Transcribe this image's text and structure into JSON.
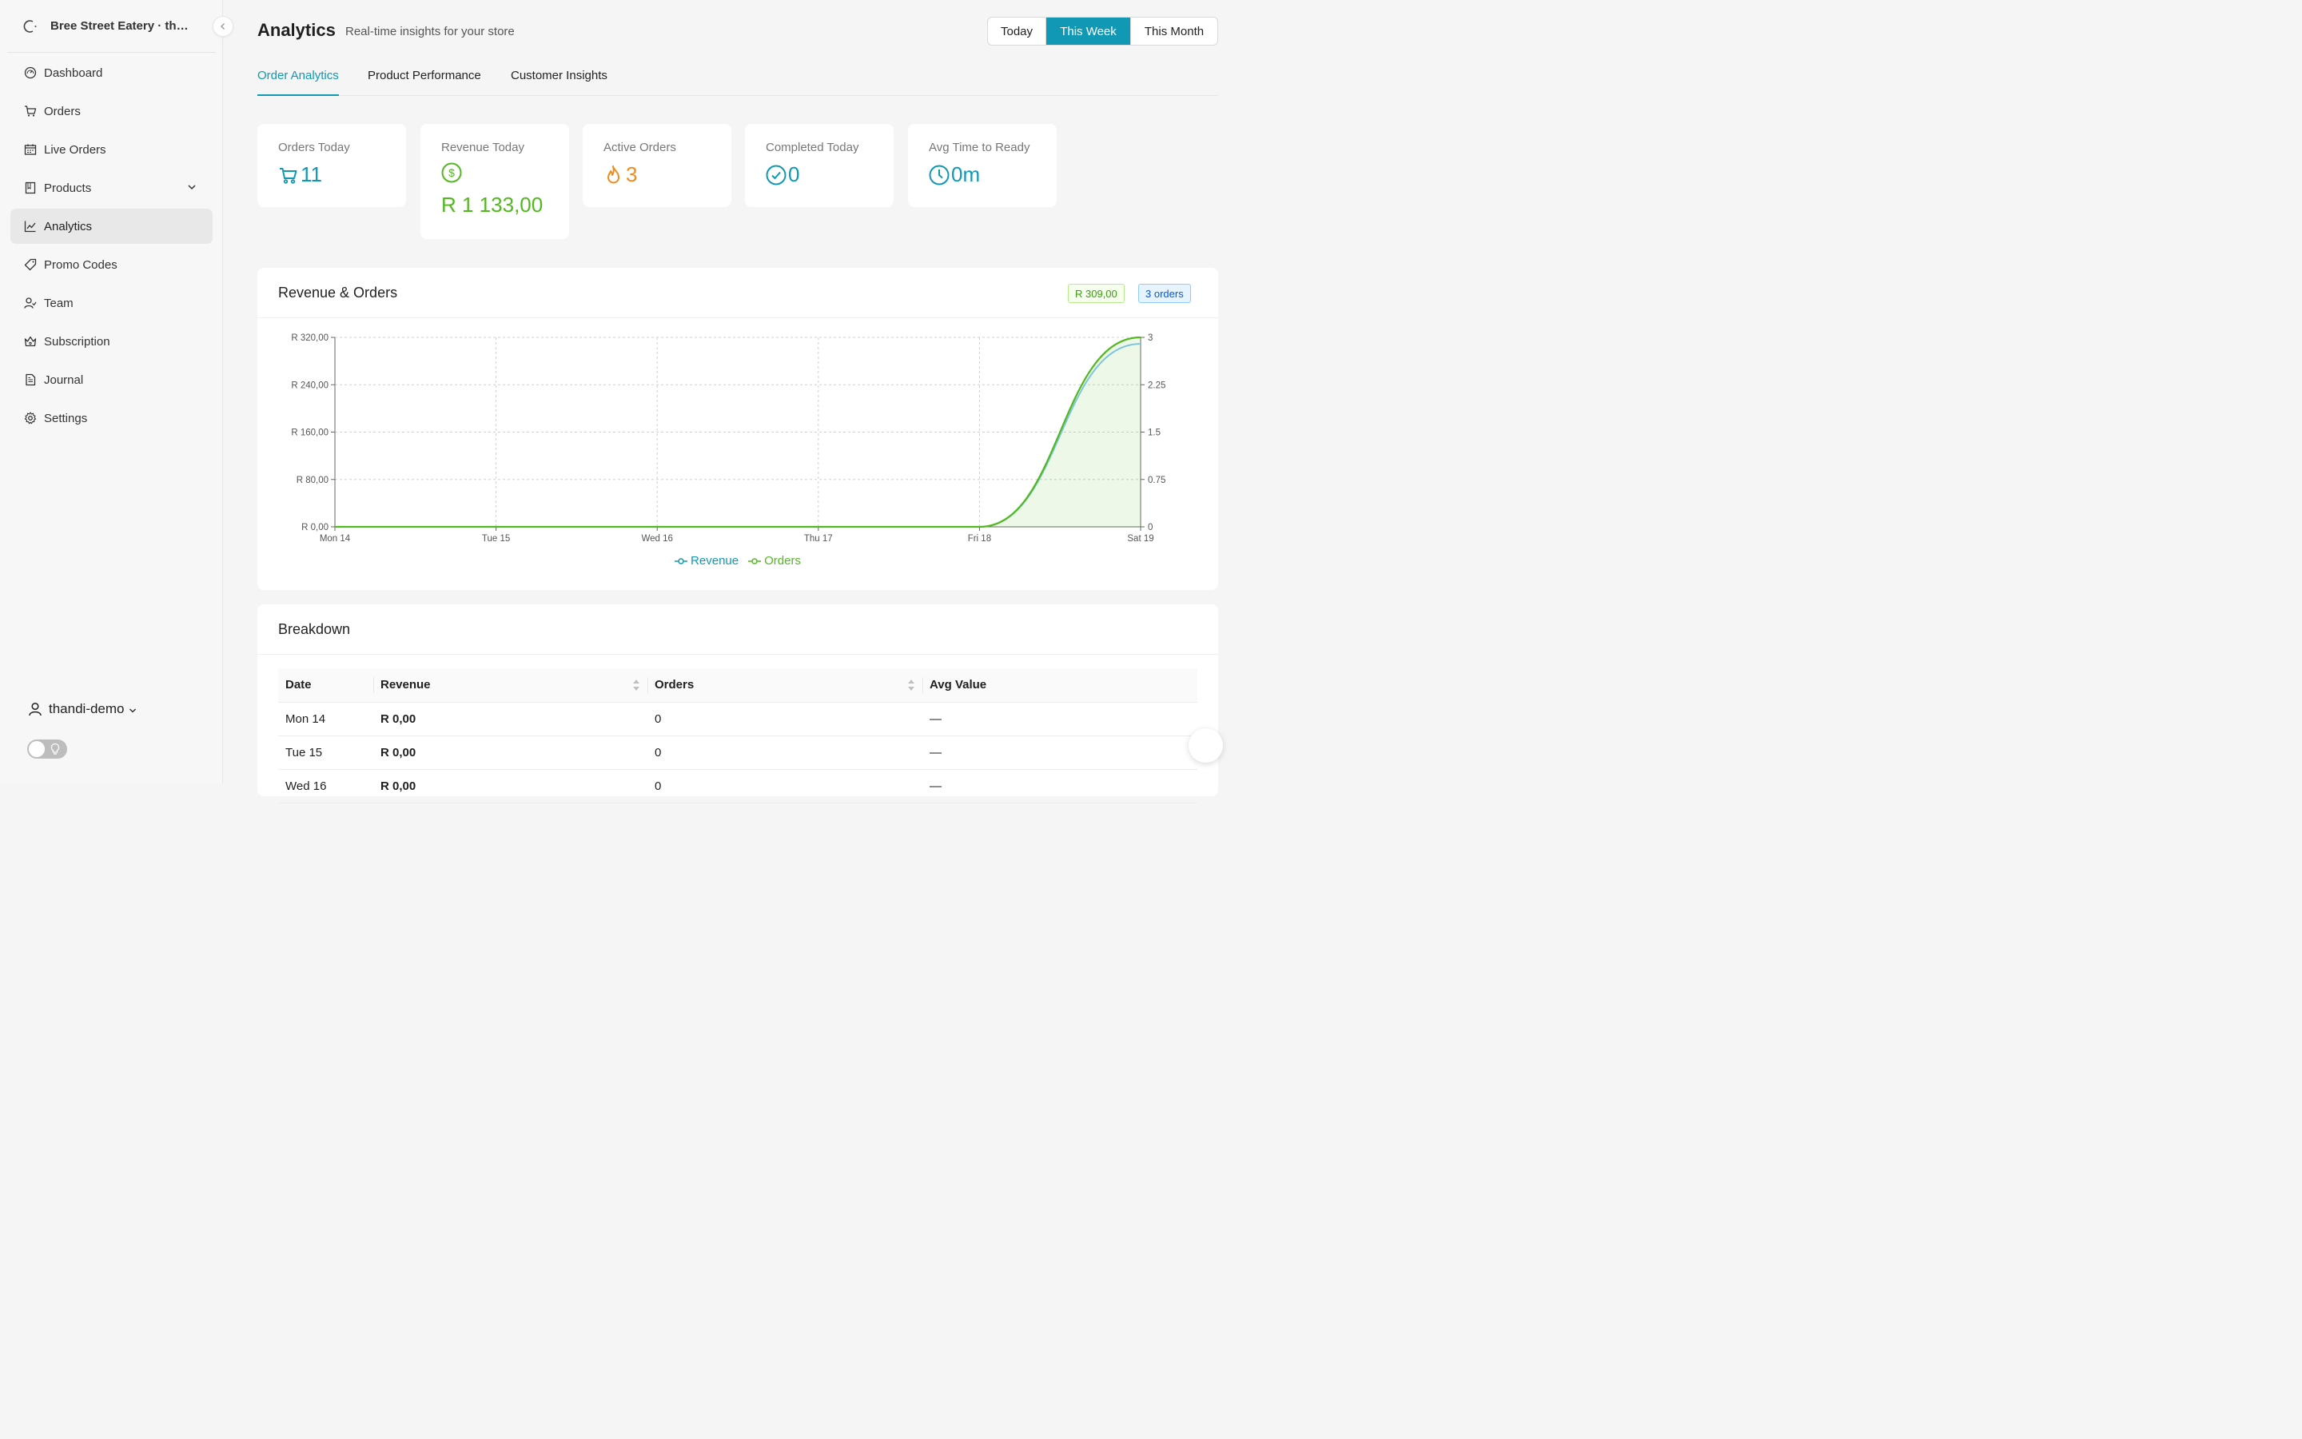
{
  "sidebar": {
    "brand": "Bree Street Eatery · the...",
    "items": [
      {
        "label": "Dashboard",
        "icon": "dashboard-icon"
      },
      {
        "label": "Orders",
        "icon": "cart-icon"
      },
      {
        "label": "Live Orders",
        "icon": "live-calendar-icon"
      },
      {
        "label": "Products",
        "icon": "book-icon"
      },
      {
        "label": "Analytics",
        "icon": "line-chart-icon"
      },
      {
        "label": "Promo Codes",
        "icon": "tag-icon"
      },
      {
        "label": "Team",
        "icon": "team-icon"
      },
      {
        "label": "Subscription",
        "icon": "crown-icon"
      },
      {
        "label": "Journal",
        "icon": "file-icon"
      },
      {
        "label": "Settings",
        "icon": "gear-icon"
      }
    ],
    "active_item": "Analytics",
    "user": "thandi-demo"
  },
  "header": {
    "title": "Analytics",
    "subtitle": "Real-time insights for your store",
    "ranges": [
      "Today",
      "This Week",
      "This Month"
    ],
    "active_range": "This Week"
  },
  "tabs": [
    "Order Analytics",
    "Product Performance",
    "Customer Insights"
  ],
  "active_tab": "Order Analytics",
  "stats": [
    {
      "label": "Orders Today",
      "value": "11",
      "icon": "cart-icon",
      "color": "#1098b5"
    },
    {
      "label": "Revenue Today",
      "value": "R 1 133,00",
      "icon": "dollar-circle-icon",
      "color": "#52b820"
    },
    {
      "label": "Active Orders",
      "value": "3",
      "icon": "fire-icon",
      "color": "#f28b1e"
    },
    {
      "label": "Completed Today",
      "value": "0",
      "icon": "check-circle-icon",
      "color": "#1098b5"
    },
    {
      "label": "Avg Time to Ready",
      "value": "0m",
      "icon": "clock-icon",
      "color": "#1098b5"
    }
  ],
  "revenue_card": {
    "title": "Revenue & Orders",
    "revenue_badge": "R 309,00",
    "orders_badge": "3 orders"
  },
  "chart_data": {
    "type": "line",
    "x": [
      "Mon 14",
      "Tue 15",
      "Wed 16",
      "Thu 17",
      "Fri 18",
      "Sat 19"
    ],
    "series": [
      {
        "name": "Revenue",
        "axis": "left",
        "color": "#1098b5",
        "values": [
          0,
          0,
          0,
          0,
          0,
          309
        ]
      },
      {
        "name": "Orders",
        "axis": "right",
        "color": "#52b820",
        "values": [
          0,
          0,
          0,
          0,
          0,
          3
        ]
      }
    ],
    "y_left": {
      "ticks": [
        "R 0,00",
        "R 80,00",
        "R 160,00",
        "R 240,00",
        "R 320,00"
      ],
      "range": [
        0,
        320
      ]
    },
    "y_right": {
      "ticks": [
        "0",
        "0.75",
        "1.5",
        "2.25",
        "3"
      ],
      "range": [
        0,
        3
      ]
    },
    "grid": true,
    "legend_position": "bottom-center"
  },
  "breakdown": {
    "title": "Breakdown",
    "columns": [
      "Date",
      "Revenue",
      "Orders",
      "Avg Value"
    ],
    "rows": [
      [
        "Mon 14",
        "R 0,00",
        "0",
        "—"
      ],
      [
        "Tue 15",
        "R 0,00",
        "0",
        "—"
      ],
      [
        "Wed 16",
        "R 0,00",
        "0",
        "—"
      ]
    ]
  }
}
